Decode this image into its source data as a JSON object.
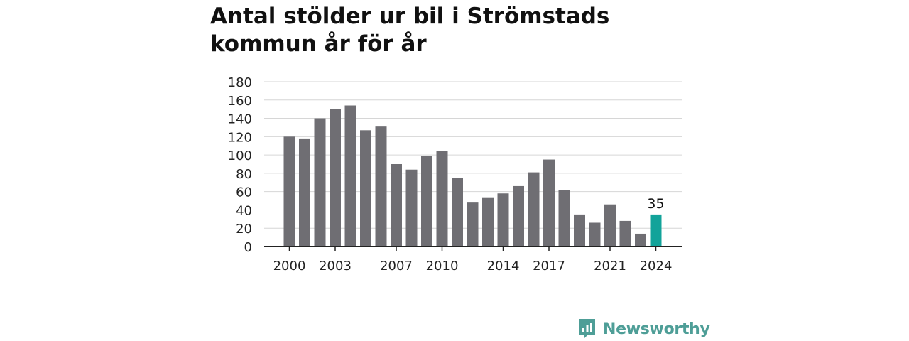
{
  "colors": {
    "bar": "#6f6e73",
    "highlight": "#12a39a",
    "grid": "#d6d6d6",
    "axis": "#222222",
    "brand": "#4e9e97"
  },
  "brand": {
    "name": "Newsworthy",
    "icon": "bar-chart-speech-bubble-icon"
  },
  "chart_data": {
    "type": "bar",
    "title": "Antal stölder ur bil i Strömstads kommun år för år",
    "xlabel": "",
    "ylabel": "",
    "ylim": [
      0,
      180
    ],
    "yticks": [
      0,
      20,
      40,
      60,
      80,
      100,
      120,
      140,
      160,
      180
    ],
    "grid": true,
    "categories": [
      "2000",
      "2001",
      "2002",
      "2003",
      "2004",
      "2005",
      "2006",
      "2007",
      "2008",
      "2009",
      "2010",
      "2011",
      "2012",
      "2013",
      "2014",
      "2015",
      "2016",
      "2017",
      "2018",
      "2019",
      "2020",
      "2021",
      "2022",
      "2023",
      "2024"
    ],
    "xtick_labels": [
      "2000",
      "2003",
      "2007",
      "2010",
      "2014",
      "2017",
      "2021",
      "2024"
    ],
    "values": [
      120,
      118,
      140,
      150,
      154,
      127,
      131,
      90,
      84,
      99,
      104,
      75,
      48,
      53,
      58,
      66,
      81,
      95,
      62,
      35,
      26,
      46,
      28,
      14,
      35
    ],
    "highlight": {
      "category": "2024",
      "label": "35"
    }
  }
}
